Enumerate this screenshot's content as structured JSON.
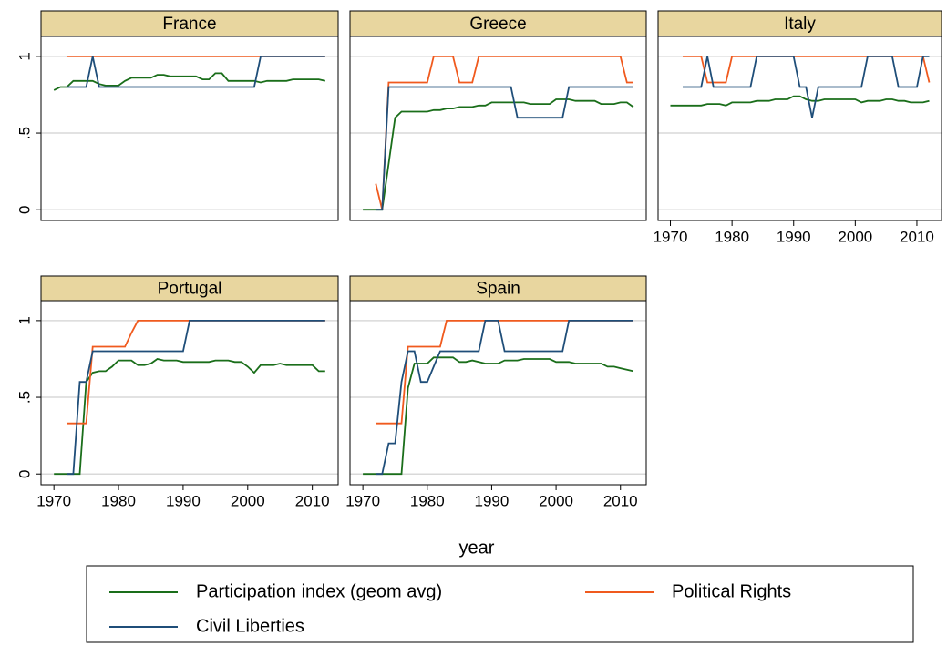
{
  "chart_data": {
    "type": "line",
    "xlabel": "year",
    "xlim": [
      1968,
      2014
    ],
    "xticks": [
      1970,
      1980,
      1990,
      2000,
      2010
    ],
    "ylim": [
      -0.07,
      1.13
    ],
    "yticks": [
      0,
      {
        "value": 0.5,
        "label": ".5"
      },
      1
    ],
    "grid": true,
    "legend": "bottom",
    "x": [
      1970,
      1971,
      1972,
      1973,
      1974,
      1975,
      1976,
      1977,
      1978,
      1979,
      1980,
      1981,
      1982,
      1983,
      1984,
      1985,
      1986,
      1987,
      1988,
      1989,
      1990,
      1991,
      1992,
      1993,
      1994,
      1995,
      1996,
      1997,
      1998,
      1999,
      2000,
      2001,
      2002,
      2003,
      2004,
      2005,
      2006,
      2007,
      2008,
      2009,
      2010,
      2011,
      2012
    ],
    "series": [
      {
        "name": "Participation index (geom avg)",
        "color": "#1a6e1a"
      },
      {
        "name": "Political Rights",
        "color": "#f05a1e"
      },
      {
        "name": "Civil Liberties",
        "color": "#1f4e79"
      }
    ],
    "panels": [
      {
        "title": "France",
        "values": [
          [
            0.78,
            0.8,
            0.8,
            0.84,
            0.84,
            0.84,
            0.84,
            0.82,
            0.81,
            0.81,
            0.81,
            0.84,
            0.86,
            0.86,
            0.86,
            0.86,
            0.88,
            0.88,
            0.87,
            0.87,
            0.87,
            0.87,
            0.87,
            0.85,
            0.85,
            0.89,
            0.89,
            0.84,
            0.84,
            0.84,
            0.84,
            0.84,
            0.83,
            0.84,
            0.84,
            0.84,
            0.84,
            0.85,
            0.85,
            0.85,
            0.85,
            0.85,
            0.84
          ],
          [
            null,
            null,
            1,
            1,
            1,
            1,
            1,
            1,
            1,
            1,
            1,
            1,
            1,
            1,
            1,
            1,
            1,
            1,
            1,
            1,
            1,
            1,
            1,
            1,
            1,
            1,
            1,
            1,
            1,
            1,
            1,
            1,
            1,
            1,
            1,
            1,
            1,
            1,
            1,
            1,
            1,
            1,
            1
          ],
          [
            null,
            null,
            0.8,
            0.8,
            0.8,
            0.8,
            1,
            0.8,
            0.8,
            0.8,
            0.8,
            0.8,
            0.8,
            0.8,
            0.8,
            0.8,
            0.8,
            0.8,
            0.8,
            0.8,
            0.8,
            0.8,
            0.8,
            0.8,
            0.8,
            0.8,
            0.8,
            0.8,
            0.8,
            0.8,
            0.8,
            0.8,
            1,
            1,
            1,
            1,
            1,
            1,
            1,
            1,
            1,
            1,
            1
          ]
        ]
      },
      {
        "title": "Greece",
        "values": [
          [
            0,
            0,
            0,
            0,
            0.3,
            0.6,
            0.64,
            0.64,
            0.64,
            0.64,
            0.64,
            0.65,
            0.65,
            0.66,
            0.66,
            0.67,
            0.67,
            0.67,
            0.68,
            0.68,
            0.7,
            0.7,
            0.7,
            0.7,
            0.7,
            0.7,
            0.69,
            0.69,
            0.69,
            0.69,
            0.72,
            0.72,
            0.72,
            0.71,
            0.71,
            0.71,
            0.71,
            0.69,
            0.69,
            0.69,
            0.7,
            0.7,
            0.67
          ],
          [
            null,
            null,
            0.17,
            0,
            0.83,
            0.83,
            0.83,
            0.83,
            0.83,
            0.83,
            0.83,
            1,
            1,
            1,
            1,
            0.83,
            0.83,
            0.83,
            1,
            1,
            1,
            1,
            1,
            1,
            1,
            1,
            1,
            1,
            1,
            1,
            1,
            1,
            1,
            1,
            1,
            1,
            1,
            1,
            1,
            1,
            1,
            0.83,
            0.83
          ],
          [
            null,
            null,
            0,
            0,
            0.8,
            0.8,
            0.8,
            0.8,
            0.8,
            0.8,
            0.8,
            0.8,
            0.8,
            0.8,
            0.8,
            0.8,
            0.8,
            0.8,
            0.8,
            0.8,
            0.8,
            0.8,
            0.8,
            0.8,
            0.6,
            0.6,
            0.6,
            0.6,
            0.6,
            0.6,
            0.6,
            0.6,
            0.8,
            0.8,
            0.8,
            0.8,
            0.8,
            0.8,
            0.8,
            0.8,
            0.8,
            0.8,
            0.8
          ]
        ]
      },
      {
        "title": "Italy",
        "values": [
          [
            0.68,
            0.68,
            0.68,
            0.68,
            0.68,
            0.68,
            0.69,
            0.69,
            0.69,
            0.68,
            0.7,
            0.7,
            0.7,
            0.7,
            0.71,
            0.71,
            0.71,
            0.72,
            0.72,
            0.72,
            0.74,
            0.74,
            0.72,
            0.71,
            0.71,
            0.72,
            0.72,
            0.72,
            0.72,
            0.72,
            0.72,
            0.7,
            0.71,
            0.71,
            0.71,
            0.72,
            0.72,
            0.71,
            0.71,
            0.7,
            0.7,
            0.7,
            0.71
          ],
          [
            null,
            null,
            1,
            1,
            1,
            1,
            0.83,
            0.83,
            0.83,
            0.83,
            1,
            1,
            1,
            1,
            1,
            1,
            1,
            1,
            1,
            1,
            1,
            1,
            1,
            1,
            1,
            1,
            1,
            1,
            1,
            1,
            1,
            1,
            1,
            1,
            1,
            1,
            1,
            1,
            1,
            1,
            1,
            1,
            0.83
          ],
          [
            null,
            null,
            0.8,
            0.8,
            0.8,
            0.8,
            1,
            0.8,
            0.8,
            0.8,
            0.8,
            0.8,
            0.8,
            0.8,
            1,
            1,
            1,
            1,
            1,
            1,
            1,
            0.8,
            0.8,
            0.6,
            0.8,
            0.8,
            0.8,
            0.8,
            0.8,
            0.8,
            0.8,
            0.8,
            1,
            1,
            1,
            1,
            1,
            0.8,
            0.8,
            0.8,
            0.8,
            1,
            1
          ]
        ]
      },
      {
        "title": "Portugal",
        "values": [
          [
            0,
            0,
            0,
            0,
            0,
            0.6,
            0.66,
            0.67,
            0.67,
            0.7,
            0.74,
            0.74,
            0.74,
            0.71,
            0.71,
            0.72,
            0.75,
            0.74,
            0.74,
            0.74,
            0.73,
            0.73,
            0.73,
            0.73,
            0.73,
            0.74,
            0.74,
            0.74,
            0.73,
            0.73,
            0.7,
            0.66,
            0.71,
            0.71,
            0.71,
            0.72,
            0.71,
            0.71,
            0.71,
            0.71,
            0.71,
            0.67,
            0.67
          ],
          [
            null,
            null,
            0.33,
            0.33,
            0.33,
            0.33,
            0.83,
            0.83,
            0.83,
            0.83,
            0.83,
            0.83,
            0.92,
            1,
            1,
            1,
            1,
            1,
            1,
            1,
            1,
            1,
            1,
            1,
            1,
            1,
            1,
            1,
            1,
            1,
            1,
            1,
            1,
            1,
            1,
            1,
            1,
            1,
            1,
            1,
            1,
            1,
            1
          ],
          [
            null,
            null,
            0,
            0,
            0.6,
            0.6,
            0.8,
            0.8,
            0.8,
            0.8,
            0.8,
            0.8,
            0.8,
            0.8,
            0.8,
            0.8,
            0.8,
            0.8,
            0.8,
            0.8,
            0.8,
            1,
            1,
            1,
            1,
            1,
            1,
            1,
            1,
            1,
            1,
            1,
            1,
            1,
            1,
            1,
            1,
            1,
            1,
            1,
            1,
            1,
            1
          ]
        ]
      },
      {
        "title": "Spain",
        "values": [
          [
            0,
            0,
            0,
            0,
            0,
            0,
            0,
            0.56,
            0.72,
            0.72,
            0.72,
            0.76,
            0.76,
            0.76,
            0.76,
            0.73,
            0.73,
            0.74,
            0.73,
            0.72,
            0.72,
            0.72,
            0.74,
            0.74,
            0.74,
            0.75,
            0.75,
            0.75,
            0.75,
            0.75,
            0.73,
            0.73,
            0.73,
            0.72,
            0.72,
            0.72,
            0.72,
            0.72,
            0.7,
            0.7,
            0.69,
            0.68,
            0.67
          ],
          [
            null,
            null,
            0.33,
            0.33,
            0.33,
            0.33,
            0.33,
            0.83,
            0.83,
            0.83,
            0.83,
            0.83,
            0.83,
            1,
            1,
            1,
            1,
            1,
            1,
            1,
            1,
            1,
            1,
            1,
            1,
            1,
            1,
            1,
            1,
            1,
            1,
            1,
            1,
            1,
            1,
            1,
            1,
            1,
            1,
            1,
            1,
            1,
            1
          ],
          [
            null,
            null,
            0,
            0,
            0.2,
            0.2,
            0.6,
            0.8,
            0.8,
            0.6,
            0.6,
            0.7,
            0.8,
            0.8,
            0.8,
            0.8,
            0.8,
            0.8,
            0.8,
            1,
            1,
            1,
            0.8,
            0.8,
            0.8,
            0.8,
            0.8,
            0.8,
            0.8,
            0.8,
            0.8,
            0.8,
            1,
            1,
            1,
            1,
            1,
            1,
            1,
            1,
            1,
            1,
            1
          ]
        ]
      }
    ]
  }
}
